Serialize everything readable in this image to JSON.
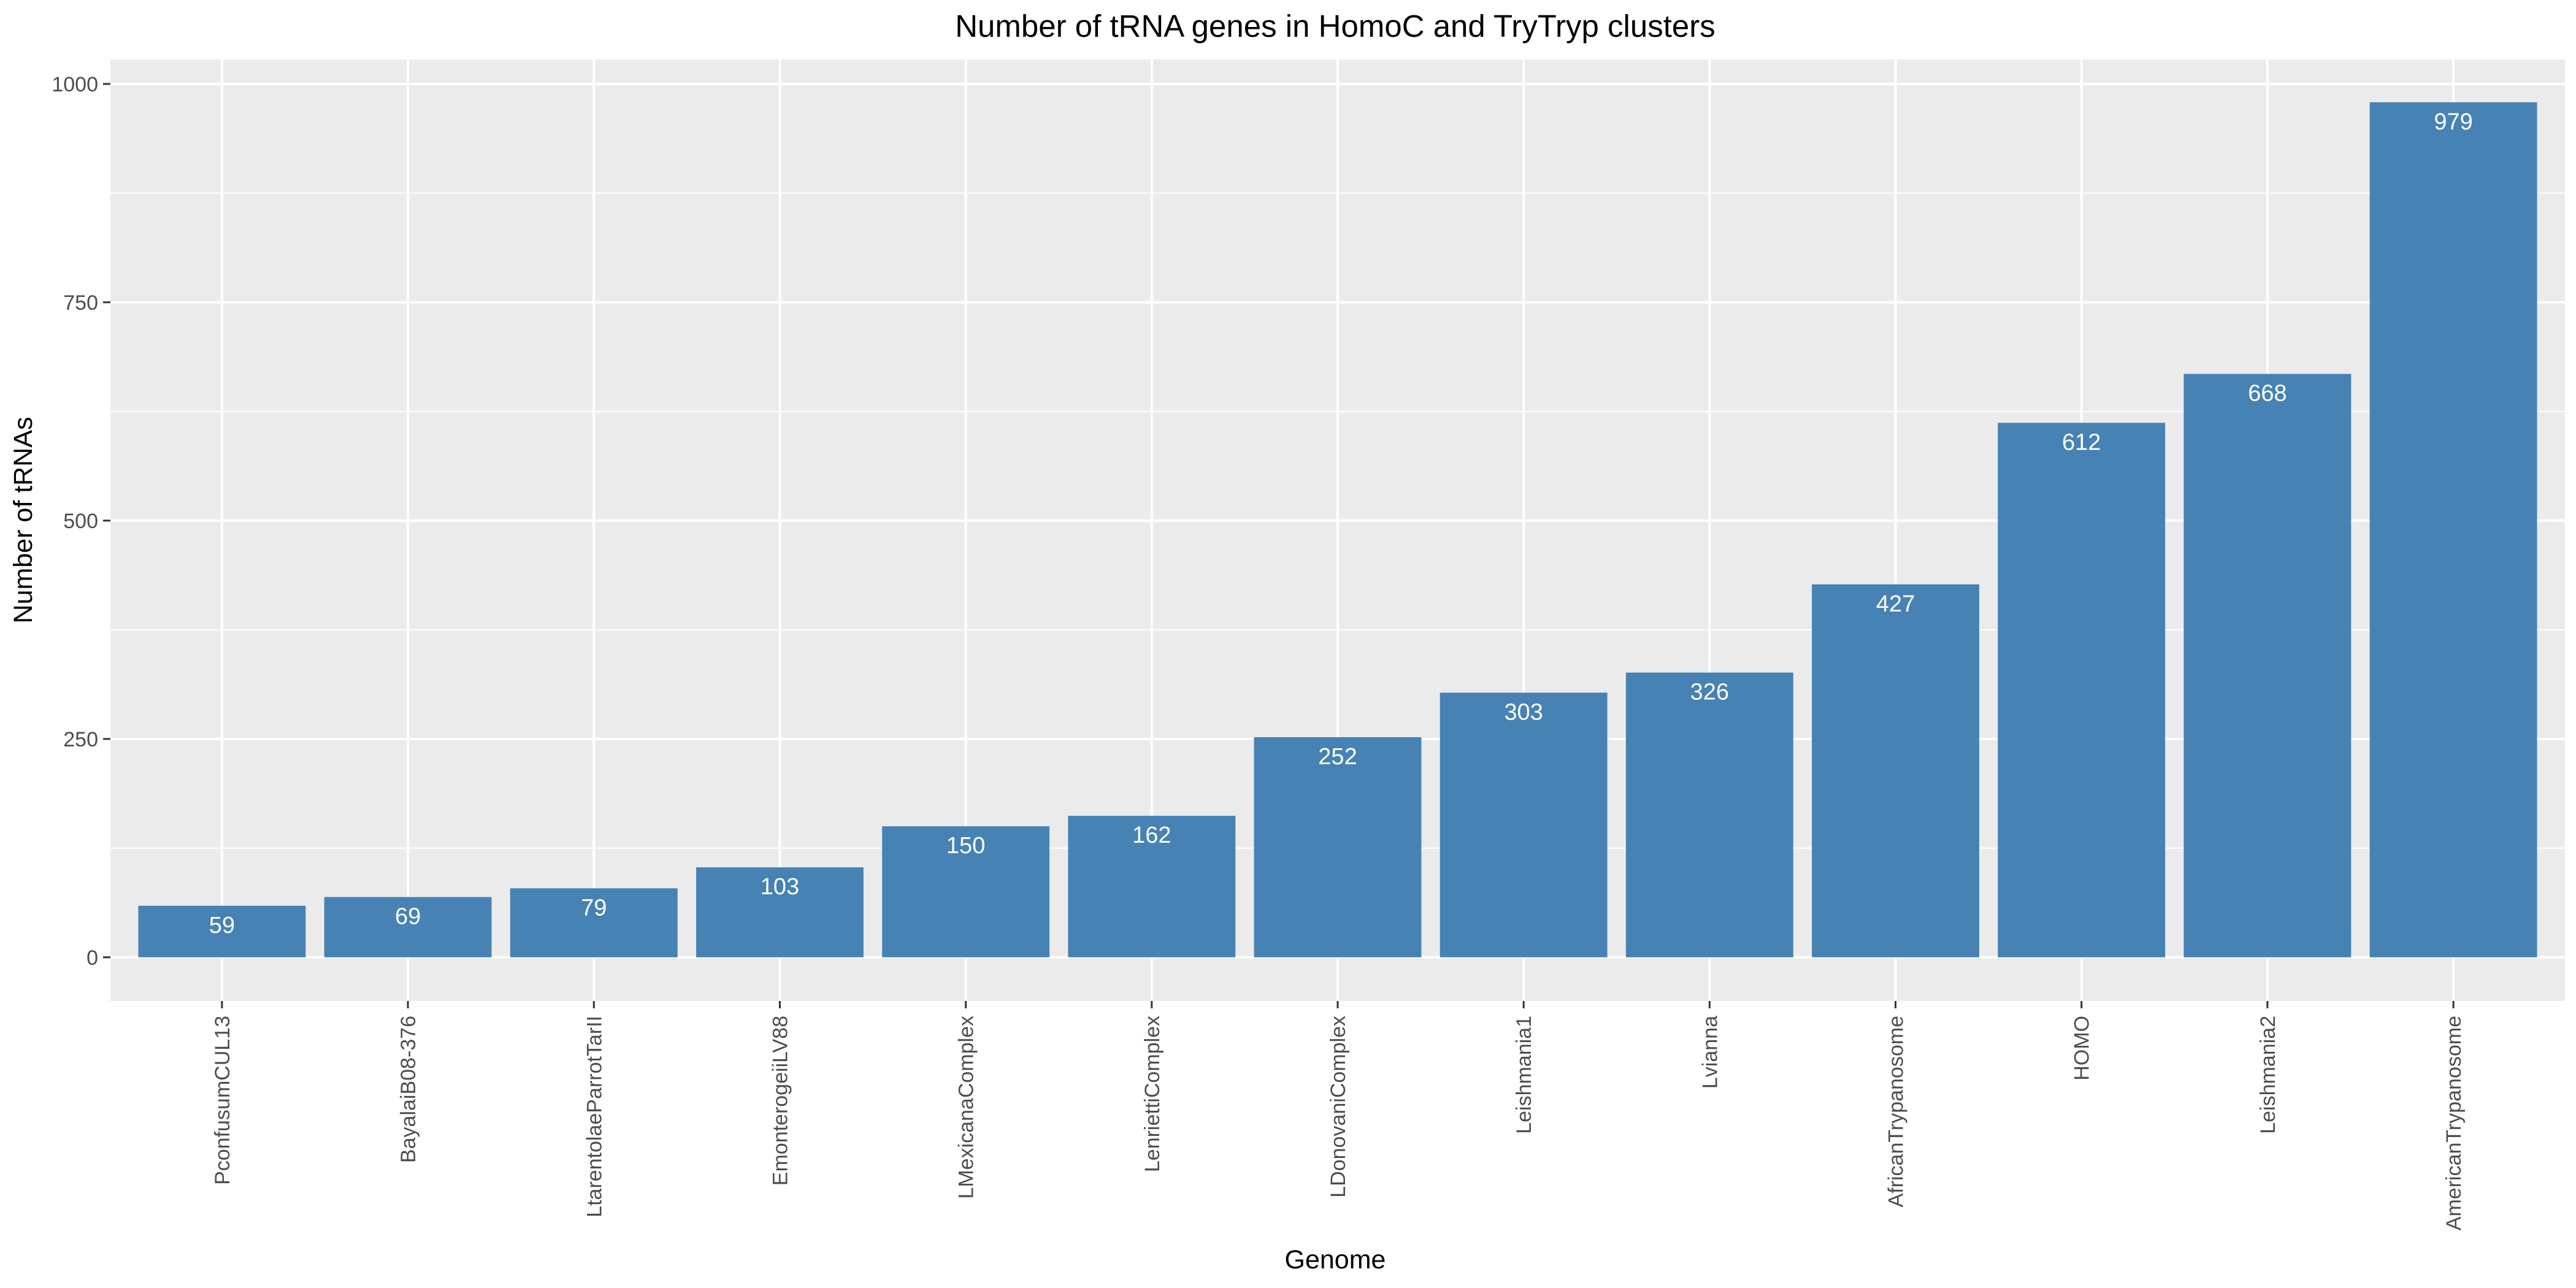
{
  "chart_data": {
    "type": "bar",
    "title": "Number of tRNA genes in HomoC and TryTryp clusters",
    "xlabel": "Genome",
    "ylabel": "Number of tRNAs",
    "categories": [
      "PconfusumCUL13",
      "BayalaiB08-376",
      "LtarentolaeParrotTarII",
      "EmonterogeiiLV88",
      "LMexicanaComplex",
      "LenriettiComplex",
      "LDonovaniComplex",
      "Leishmania1",
      "Lvianna",
      "AfricanTrypanosome",
      "HOMO",
      "Leishmania2",
      "AmericanTrypanosome"
    ],
    "values": [
      59,
      69,
      79,
      103,
      150,
      162,
      252,
      303,
      326,
      427,
      612,
      668,
      979
    ],
    "ylim": [
      -50,
      1028
    ],
    "yticks": [
      0,
      250,
      500,
      750,
      1000
    ],
    "grid": true,
    "bar_color": "#4682B4",
    "panel_color": "#EBEBEB",
    "grid_color": "#FFFFFF",
    "label_color": "#FFFFFF"
  }
}
